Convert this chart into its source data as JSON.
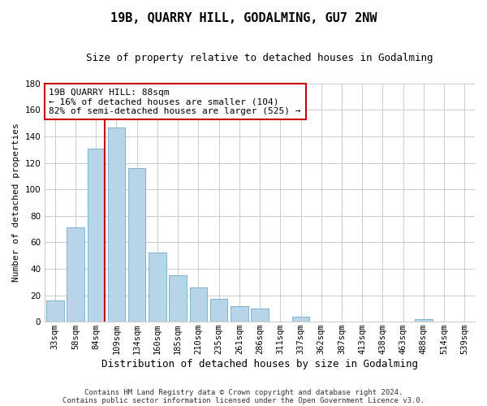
{
  "title": "19B, QUARRY HILL, GODALMING, GU7 2NW",
  "subtitle": "Size of property relative to detached houses in Godalming",
  "xlabel": "Distribution of detached houses by size in Godalming",
  "ylabel": "Number of detached properties",
  "bar_labels": [
    "33sqm",
    "58sqm",
    "84sqm",
    "109sqm",
    "134sqm",
    "160sqm",
    "185sqm",
    "210sqm",
    "235sqm",
    "261sqm",
    "286sqm",
    "311sqm",
    "337sqm",
    "362sqm",
    "387sqm",
    "413sqm",
    "438sqm",
    "463sqm",
    "488sqm",
    "514sqm",
    "539sqm"
  ],
  "bar_values": [
    16,
    71,
    131,
    147,
    116,
    52,
    35,
    26,
    17,
    12,
    10,
    0,
    4,
    0,
    0,
    0,
    0,
    0,
    2,
    0,
    0
  ],
  "bar_color": "#b8d4e8",
  "bar_edge_color": "#7fb3d3",
  "ylim": [
    0,
    180
  ],
  "yticks": [
    0,
    20,
    40,
    60,
    80,
    100,
    120,
    140,
    160,
    180
  ],
  "property_line_index": 2,
  "property_line_color": "#cc0000",
  "annotation_line1": "19B QUARRY HILL: 88sqm",
  "annotation_line2": "← 16% of detached houses are smaller (104)",
  "annotation_line3": "82% of semi-detached houses are larger (525) →",
  "annotation_box_color": "#ffffff",
  "annotation_box_edge": "#cc0000",
  "footer_line1": "Contains HM Land Registry data © Crown copyright and database right 2024.",
  "footer_line2": "Contains public sector information licensed under the Open Government Licence v3.0.",
  "background_color": "#ffffff",
  "grid_color": "#cccccc",
  "title_fontsize": 11,
  "subtitle_fontsize": 9,
  "xlabel_fontsize": 9,
  "ylabel_fontsize": 8,
  "tick_fontsize": 7.5,
  "annotation_fontsize": 8,
  "footer_fontsize": 6.5
}
